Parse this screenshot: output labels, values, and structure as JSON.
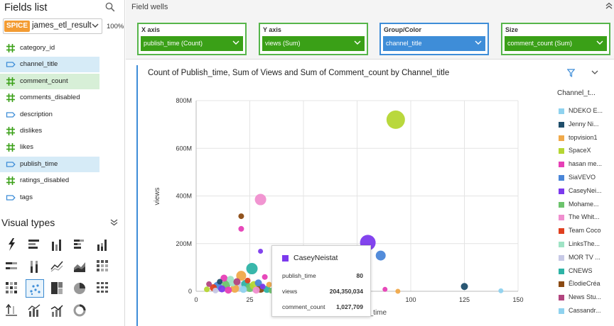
{
  "fields_panel": {
    "title": "Fields list",
    "dataset": {
      "badge": "SPICE",
      "name": "james_etl_result",
      "percent": "100%"
    },
    "fields": [
      {
        "type": "measure",
        "label": "category_id",
        "state": "none"
      },
      {
        "type": "dimension",
        "label": "channel_title",
        "state": "blue"
      },
      {
        "type": "measure",
        "label": "comment_count",
        "state": "green"
      },
      {
        "type": "measure",
        "label": "comments_disabled",
        "state": "none"
      },
      {
        "type": "dimension",
        "label": "description",
        "state": "none"
      },
      {
        "type": "measure",
        "label": "dislikes",
        "state": "none"
      },
      {
        "type": "measure",
        "label": "likes",
        "state": "none"
      },
      {
        "type": "dimension",
        "label": "publish_time",
        "state": "blue"
      },
      {
        "type": "measure",
        "label": "ratings_disabled",
        "state": "none"
      },
      {
        "type": "dimension",
        "label": "tags",
        "state": "none"
      }
    ],
    "visual_types_title": "Visual types",
    "visual_types": [
      "autograph-icon",
      "horizontal-bar-icon",
      "vertical-bar-icon",
      "horizontal-stacked-bar-icon",
      "vertical-stacked-bar-icon",
      "horizontal-100-bar-icon",
      "vertical-100-bar-icon",
      "line-chart-icon",
      "area-chart-icon",
      "pivot-table-icon",
      "heat-map-icon",
      "scatter-plot-icon",
      "tree-map-icon",
      "pie-chart-icon",
      "table-icon",
      "kpi-icon",
      "combo-bar-icon",
      "combo-line-icon",
      "donut-chart-icon"
    ],
    "active_visual_index": 11
  },
  "field_wells": {
    "title": "Field wells",
    "wells": [
      {
        "label": "X axis",
        "value": "publish_time (Count)",
        "color": "#3aa017"
      },
      {
        "label": "Y axis",
        "value": "views (Sum)",
        "color": "#3aa017"
      },
      {
        "label": "Group/Color",
        "value": "channel_title",
        "color": "#3e8dd8"
      },
      {
        "label": "Size",
        "value": "comment_count (Sum)",
        "color": "#3aa017"
      }
    ]
  },
  "visual": {
    "title": "Count of Publish_time, Sum of Views and Sum of Comment_count by Channel_title",
    "legend_title": "Channel_t...",
    "legend": [
      {
        "label": "NDEKO E...",
        "color": "#8fd2ef"
      },
      {
        "label": "Jenny Ni...",
        "color": "#1f4e6b"
      },
      {
        "label": "topvision1",
        "color": "#f0a94a"
      },
      {
        "label": "SpaceX",
        "color": "#b5d633"
      },
      {
        "label": "hasan me...",
        "color": "#e63fb6"
      },
      {
        "label": "SiaVEVO",
        "color": "#4a86d8"
      },
      {
        "label": "CaseyNei...",
        "color": "#7c3aed"
      },
      {
        "label": "Mohame...",
        "color": "#6cc36c"
      },
      {
        "label": "The Whit...",
        "color": "#f08fcf"
      },
      {
        "label": "Team Coco",
        "color": "#e0401f"
      },
      {
        "label": "LinksThe...",
        "color": "#9fe3c5"
      },
      {
        "label": "MOR TV ...",
        "color": "#c7c9e6"
      },
      {
        "label": "CNEWS",
        "color": "#2eb3a6"
      },
      {
        "label": "ÉlodieCréa",
        "color": "#8b4a12"
      },
      {
        "label": "News Stu...",
        "color": "#b2457f"
      },
      {
        "label": "Cassandr...",
        "color": "#8fd2ef"
      }
    ],
    "tooltip": {
      "name": "CaseyNeistat",
      "color": "#7c3aed",
      "rows": [
        {
          "key": "publish_time",
          "value": "80"
        },
        {
          "key": "views",
          "value": "204,350,034"
        },
        {
          "key": "comment_count",
          "value": "1,027,709"
        }
      ]
    }
  },
  "chart_data": {
    "type": "scatter",
    "title": "Count of Publish_time, Sum of Views and Sum of Comment_count by Channel_title",
    "xlabel": "publish_time",
    "ylabel": "views",
    "xlim": [
      0,
      150
    ],
    "ylim": [
      0,
      800
    ],
    "x_ticks": [
      0,
      25,
      50,
      75,
      100,
      125,
      150
    ],
    "y_ticks": [
      {
        "v": 0,
        "label": "0"
      },
      {
        "v": 200,
        "label": "200M"
      },
      {
        "v": 400,
        "label": "400M"
      },
      {
        "v": 600,
        "label": "600M"
      },
      {
        "v": 800,
        "label": "800M"
      }
    ],
    "grid": true,
    "legend_position": "right",
    "y_unit": "millions of views",
    "points": [
      {
        "x": 93,
        "y": 720,
        "size": 13,
        "color": "#b5d633"
      },
      {
        "x": 30,
        "y": 385,
        "size": 8,
        "color": "#f08fcf"
      },
      {
        "x": 21,
        "y": 315,
        "size": 4,
        "color": "#8b4a12"
      },
      {
        "x": 21,
        "y": 262,
        "size": 4,
        "color": "#e63fb6"
      },
      {
        "x": 80,
        "y": 204,
        "size": 11,
        "color": "#7c3aed"
      },
      {
        "x": 86,
        "y": 150,
        "size": 7,
        "color": "#4a86d8"
      },
      {
        "x": 30,
        "y": 168,
        "size": 3.5,
        "color": "#7c3aed"
      },
      {
        "x": 26,
        "y": 95,
        "size": 8,
        "color": "#2eb3a6"
      },
      {
        "x": 21,
        "y": 65,
        "size": 7,
        "color": "#f0a94a"
      },
      {
        "x": 32,
        "y": 60,
        "size": 4,
        "color": "#e63fb6"
      },
      {
        "x": 125,
        "y": 20,
        "size": 5,
        "color": "#1f4e6b"
      },
      {
        "x": 142,
        "y": 2,
        "size": 3.5,
        "color": "#8fd2ef"
      },
      {
        "x": 88,
        "y": 8,
        "size": 3.5,
        "color": "#e63fb6"
      },
      {
        "x": 94,
        "y": 0,
        "size": 3.5,
        "color": "#f0a94a"
      },
      {
        "x": 5,
        "y": 8,
        "size": 4,
        "color": "#b5d633"
      },
      {
        "x": 8,
        "y": 15,
        "size": 5,
        "color": "#e0401f"
      },
      {
        "x": 10,
        "y": 22,
        "size": 6,
        "color": "#4a86d8"
      },
      {
        "x": 12,
        "y": 10,
        "size": 5,
        "color": "#7c3aed"
      },
      {
        "x": 14,
        "y": 28,
        "size": 6,
        "color": "#6cc36c"
      },
      {
        "x": 15,
        "y": 5,
        "size": 5,
        "color": "#e63fb6"
      },
      {
        "x": 17,
        "y": 35,
        "size": 5,
        "color": "#9fe3c5"
      },
      {
        "x": 18,
        "y": 12,
        "size": 6,
        "color": "#f0a94a"
      },
      {
        "x": 19,
        "y": 40,
        "size": 5,
        "color": "#b2457f"
      },
      {
        "x": 20,
        "y": 22,
        "size": 7,
        "color": "#c7c9e6"
      },
      {
        "x": 22,
        "y": 8,
        "size": 5,
        "color": "#8fd2ef"
      },
      {
        "x": 23,
        "y": 30,
        "size": 6,
        "color": "#2eb3a6"
      },
      {
        "x": 24,
        "y": 45,
        "size": 4,
        "color": "#e0401f"
      },
      {
        "x": 25,
        "y": 15,
        "size": 6,
        "color": "#6cc36c"
      },
      {
        "x": 27,
        "y": 25,
        "size": 6,
        "color": "#b5d633"
      },
      {
        "x": 28,
        "y": 5,
        "size": 5,
        "color": "#f08fcf"
      },
      {
        "x": 29,
        "y": 35,
        "size": 5,
        "color": "#4a86d8"
      },
      {
        "x": 30,
        "y": 12,
        "size": 6,
        "color": "#8b4a12"
      },
      {
        "x": 31,
        "y": 20,
        "size": 4,
        "color": "#7c3aed"
      },
      {
        "x": 33,
        "y": 8,
        "size": 5,
        "color": "#2eb3a6"
      },
      {
        "x": 34,
        "y": 28,
        "size": 4,
        "color": "#f0a94a"
      },
      {
        "x": 11,
        "y": 40,
        "size": 4,
        "color": "#1f4e6b"
      },
      {
        "x": 13,
        "y": 55,
        "size": 5,
        "color": "#e63fb6"
      },
      {
        "x": 6,
        "y": 30,
        "size": 4,
        "color": "#b2457f"
      },
      {
        "x": 35,
        "y": 3,
        "size": 4,
        "color": "#6cc36c"
      },
      {
        "x": 9,
        "y": 3,
        "size": 4,
        "color": "#c7c9e6"
      },
      {
        "x": 16,
        "y": 50,
        "size": 5,
        "color": "#9fe3c5"
      }
    ]
  }
}
